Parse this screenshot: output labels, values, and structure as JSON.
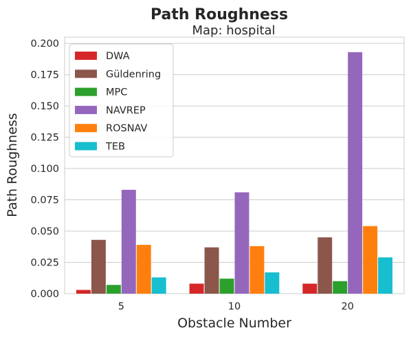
{
  "chart_data": {
    "type": "bar",
    "title": "Path Roughness",
    "subtitle": "Map: hospital",
    "xlabel": "Obstacle Number",
    "ylabel": "Path Roughness",
    "categories": [
      "5",
      "10",
      "20"
    ],
    "ylim": [
      0,
      0.205
    ],
    "yticks": [
      0.0,
      0.025,
      0.05,
      0.075,
      0.1,
      0.125,
      0.15,
      0.175,
      0.2
    ],
    "ytick_labels": [
      "0.000",
      "0.025",
      "0.050",
      "0.075",
      "0.100",
      "0.125",
      "0.150",
      "0.175",
      "0.200"
    ],
    "grid": "horizontal",
    "legend_position": "top-left",
    "series": [
      {
        "name": "DWA",
        "color": "#d62728",
        "values": [
          0.003,
          0.008,
          0.008
        ]
      },
      {
        "name": "Güldenring",
        "color": "#8c564b",
        "values": [
          0.043,
          0.037,
          0.045
        ]
      },
      {
        "name": "MPC",
        "color": "#2ca02c",
        "values": [
          0.007,
          0.012,
          0.01
        ]
      },
      {
        "name": "NAVREP",
        "color": "#9467bd",
        "values": [
          0.083,
          0.081,
          0.193
        ]
      },
      {
        "name": "ROSNAV",
        "color": "#ff7f0e",
        "values": [
          0.039,
          0.038,
          0.054
        ]
      },
      {
        "name": "TEB",
        "color": "#17becf",
        "values": [
          0.013,
          0.017,
          0.029
        ]
      }
    ]
  }
}
